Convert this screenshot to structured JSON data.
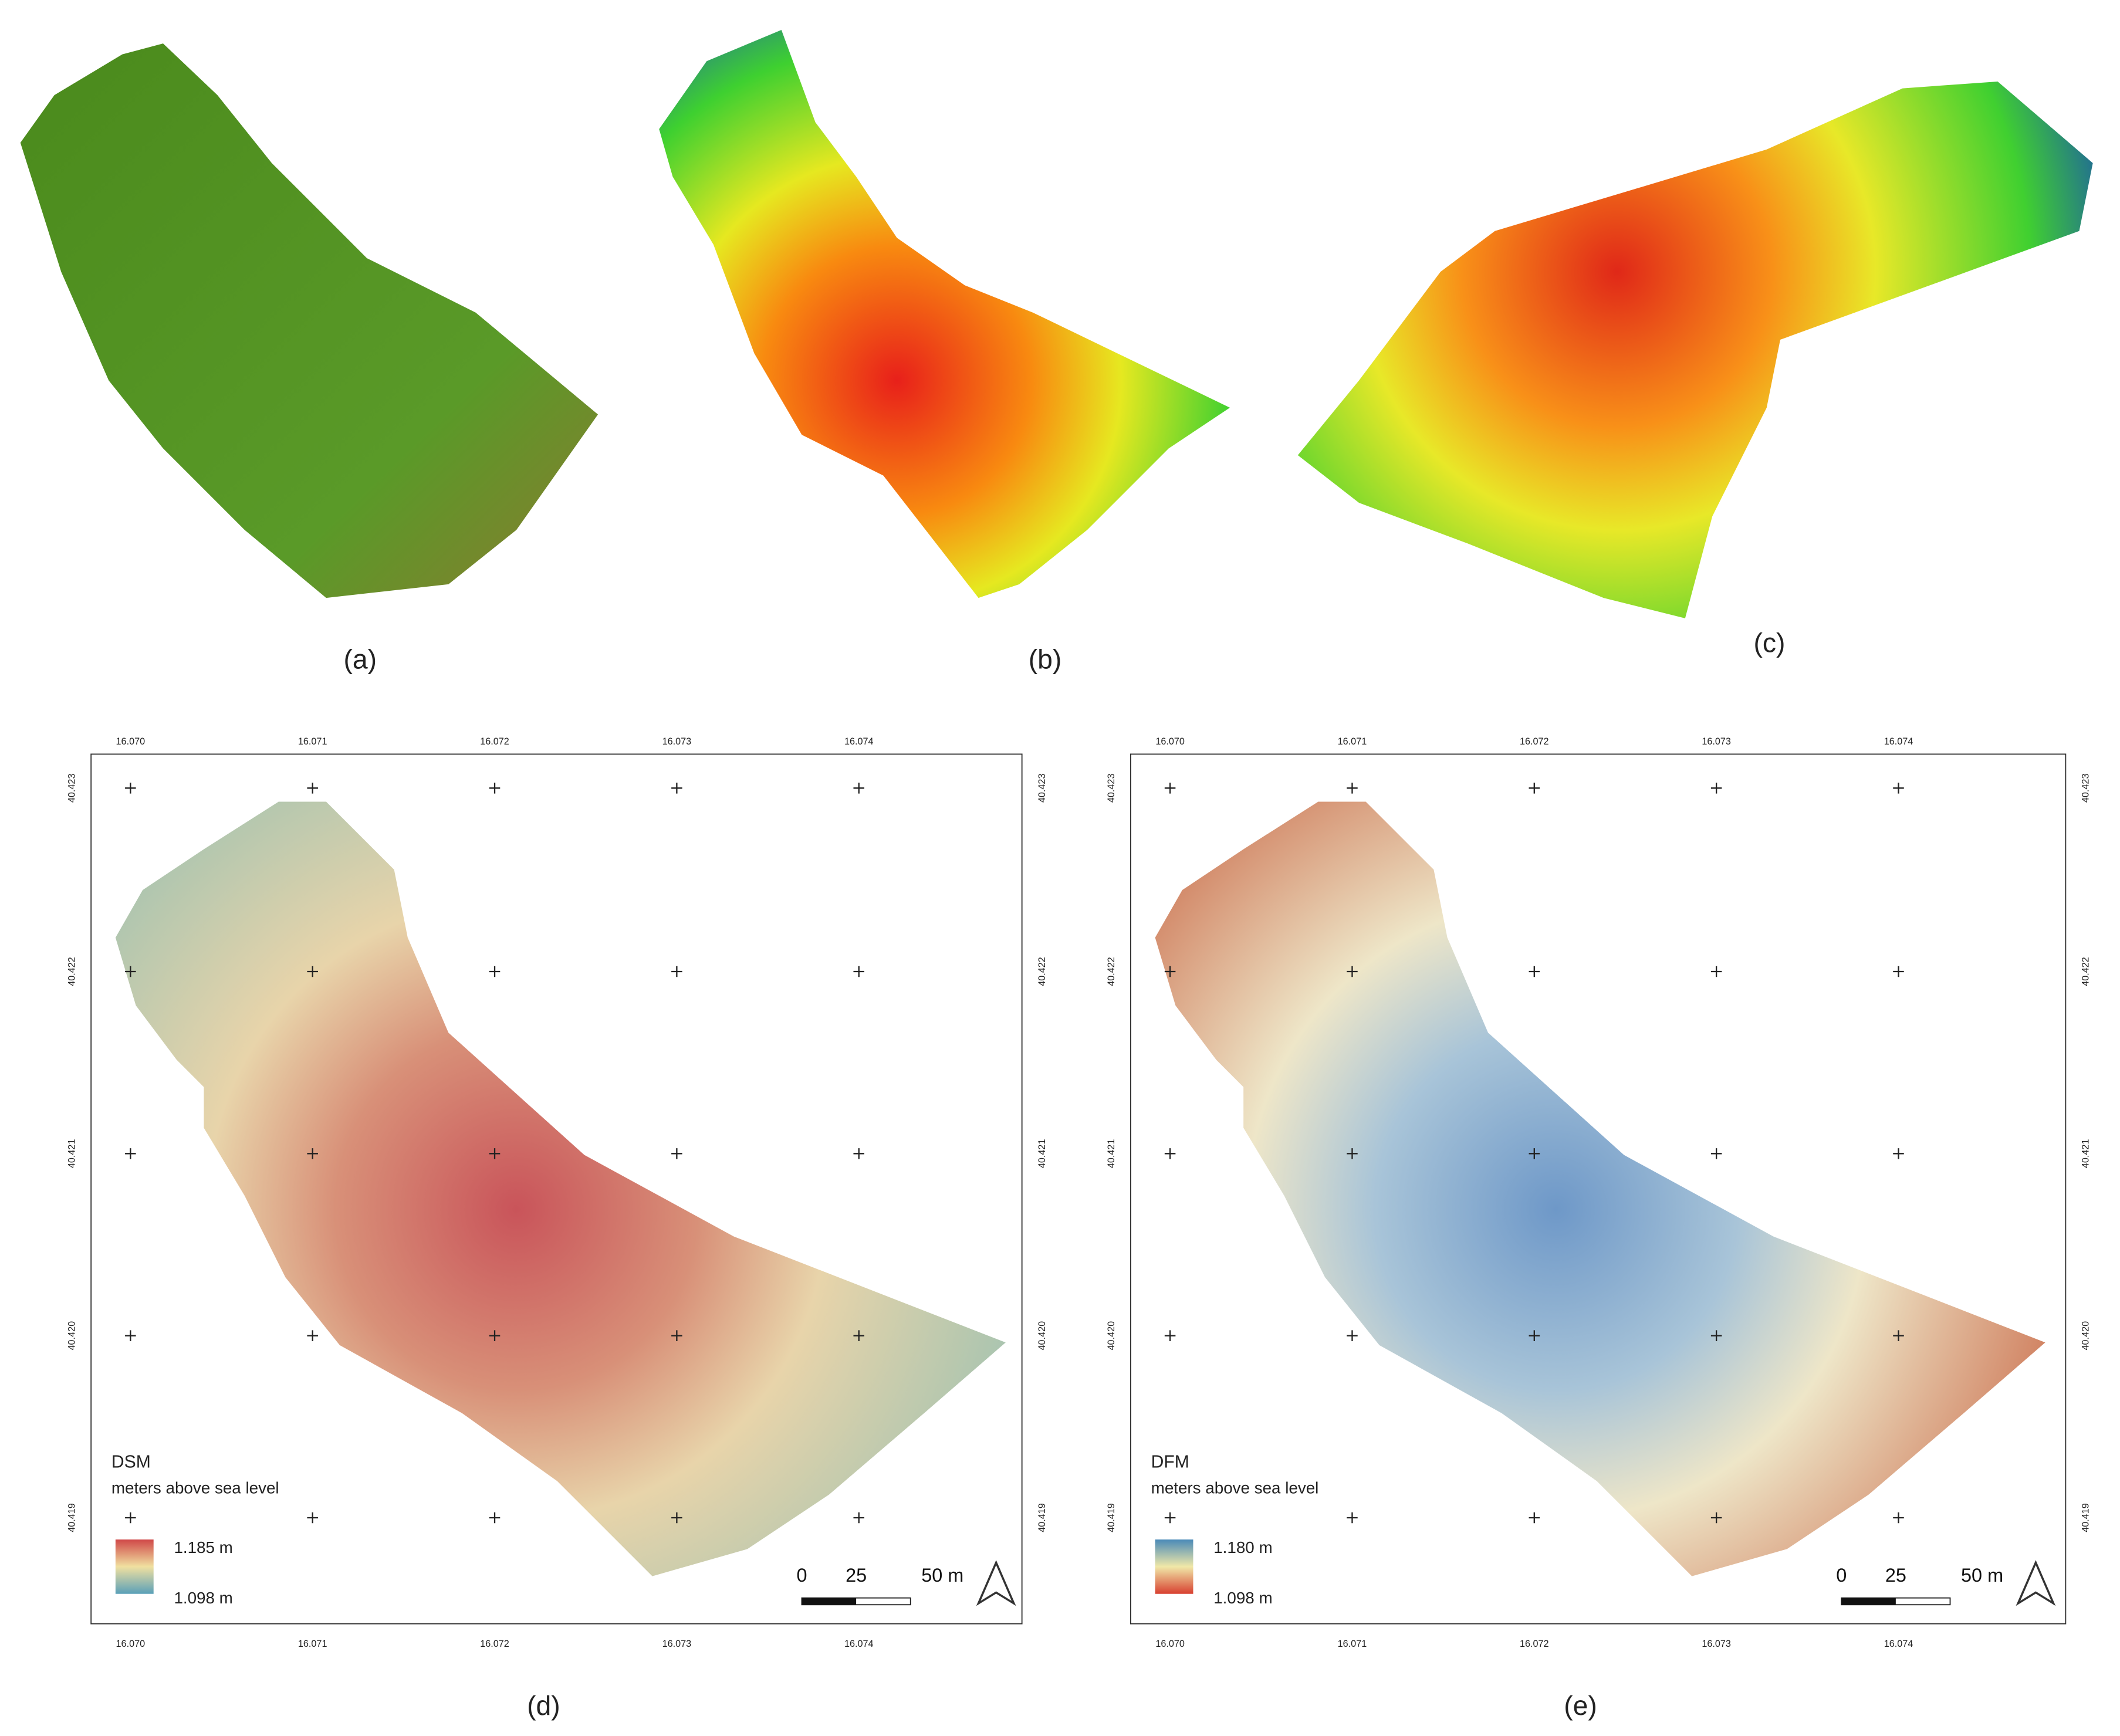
{
  "panels": [
    {
      "label": "(a)"
    },
    {
      "label": "(b)"
    },
    {
      "label": "(c)"
    }
  ],
  "maps": [
    {
      "label": "(d)",
      "legend_title": "DSM",
      "legend_subtitle": "meters above sea level",
      "legend_top": "1.185 m",
      "legend_bottom": "1.098 m"
    },
    {
      "label": "(e)",
      "legend_title": "DFM",
      "legend_subtitle": "meters above sea level",
      "legend_top": "1.180 m",
      "legend_bottom": "1.098 m"
    }
  ],
  "lon_labels": [
    "16.070",
    "16.071",
    "16.072",
    "16.073",
    "16.074"
  ],
  "lat_labels": [
    "40.423",
    "40.422",
    "40.421",
    "40.420",
    "40.419"
  ],
  "scale_bar": [
    "0",
    "25",
    "50 m"
  ]
}
